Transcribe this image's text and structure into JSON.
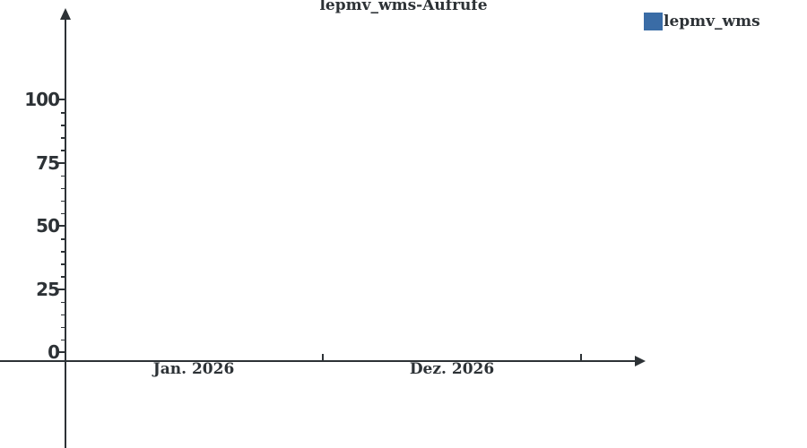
{
  "chart": {
    "title": "lepmv_wms-Aufrufe",
    "legend": {
      "position": "top-right",
      "items": [
        {
          "label": "lepmv_wms",
          "color": "#3a6ca6"
        }
      ]
    },
    "colors": {
      "ink": "#2d3236",
      "background": "#ffffff",
      "series_blue": "#3a6ca6"
    },
    "y_axis": {
      "tick_labels": [
        "0",
        "25",
        "50",
        "75",
        "100"
      ]
    },
    "x_axis": {
      "tick_labels": [
        "Jan. 2026",
        "Dez. 2026"
      ]
    }
  },
  "chart_data": {
    "type": "line",
    "title": "lepmv_wms-Aufrufe",
    "series": [
      {
        "name": "lepmv_wms",
        "color": "#3a6ca6",
        "x": [],
        "values": []
      }
    ],
    "xlabel": "",
    "ylabel": "",
    "x_tick_labels": [
      "Jan. 2026",
      "Dez. 2026"
    ],
    "x_range_labels": [
      "Jan. 2026",
      "Dez. 2026"
    ],
    "y_ticks": [
      0,
      25,
      50,
      75,
      100
    ],
    "y_minor_tick_step": 5,
    "ylim": [
      0,
      110
    ],
    "grid": false,
    "legend_position": "top-right",
    "plot_area_empty": true
  }
}
